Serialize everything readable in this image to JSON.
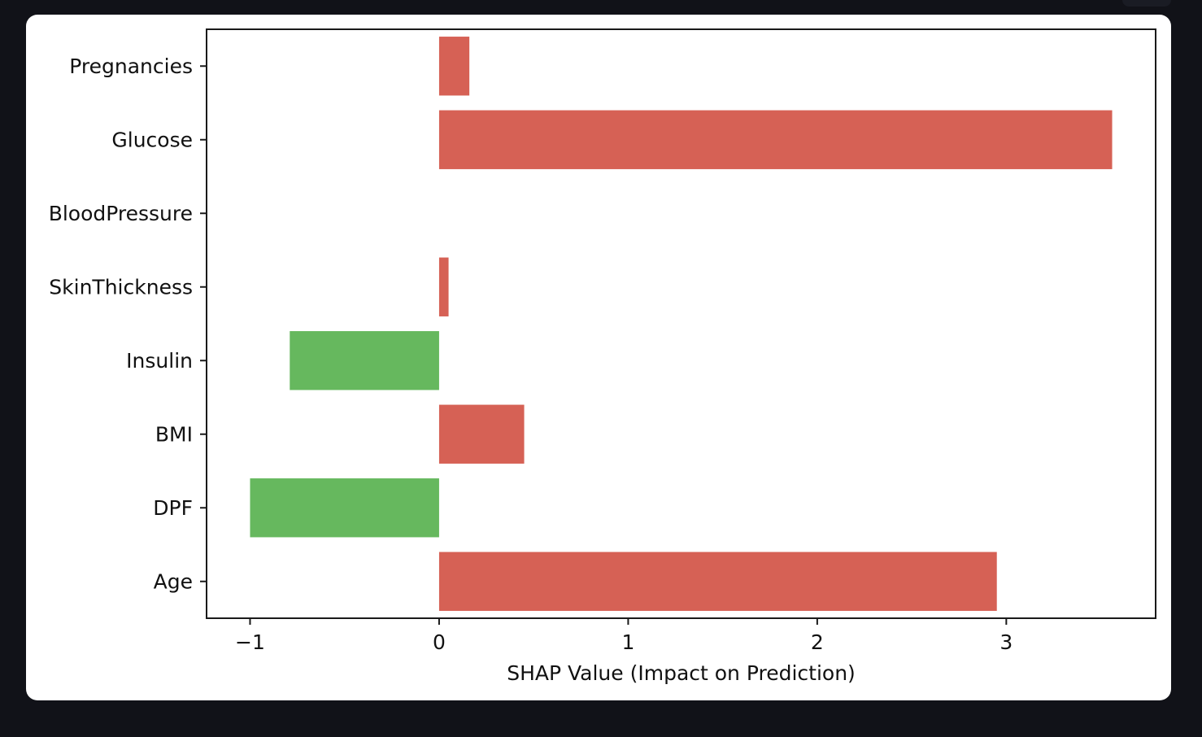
{
  "chart_data": {
    "type": "bar",
    "orientation": "horizontal",
    "title": "",
    "xlabel": "SHAP Value (Impact on Prediction)",
    "ylabel": "",
    "categories": [
      "Pregnancies",
      "Glucose",
      "BloodPressure",
      "SkinThickness",
      "Insulin",
      "BMI",
      "DPF",
      "Age"
    ],
    "values": [
      0.16,
      3.56,
      0.0,
      0.05,
      -0.79,
      0.45,
      -1.0,
      2.95
    ],
    "xlim": [
      -1.23,
      3.79
    ],
    "xticks": [
      -1,
      0,
      1,
      2,
      3
    ],
    "xtick_labels": [
      "−1",
      "0",
      "1",
      "2",
      "3"
    ],
    "grid": false,
    "colors": {
      "positive": "#d66155",
      "negative": "#66b85e",
      "axes": "#1a1a1a"
    }
  }
}
